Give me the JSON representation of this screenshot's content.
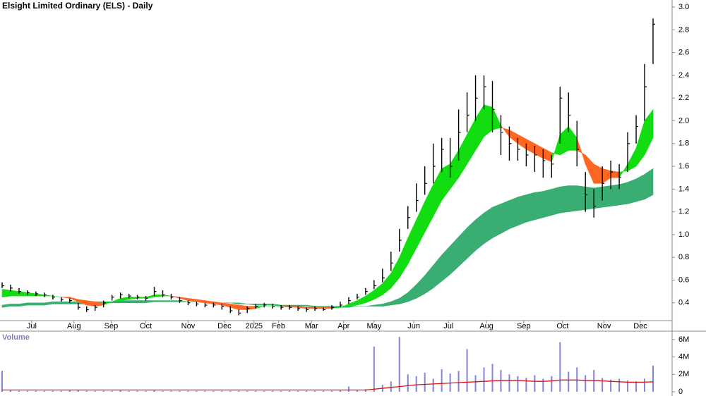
{
  "chart_data": [
    {
      "type": "ohlc",
      "title": "Elsight Limited Ordinary (ELS) - Daily",
      "high": [
        0.58,
        0.56,
        0.53,
        0.51,
        0.5,
        0.49,
        0.47,
        0.45,
        0.44,
        0.4,
        0.37,
        0.38,
        0.42,
        0.47,
        0.49,
        0.48,
        0.47,
        0.46,
        0.54,
        0.51,
        0.48,
        0.45,
        0.42,
        0.41,
        0.4,
        0.4,
        0.39,
        0.37,
        0.34,
        0.37,
        0.39,
        0.4,
        0.39,
        0.38,
        0.38,
        0.37,
        0.36,
        0.37,
        0.36,
        0.38,
        0.41,
        0.45,
        0.48,
        0.53,
        0.6,
        0.7,
        0.85,
        1.05,
        1.25,
        1.45,
        1.6,
        1.8,
        1.85,
        1.85,
        2.1,
        2.25,
        2.4,
        2.4,
        2.35,
        2.05,
        1.95,
        1.85,
        1.8,
        1.78,
        1.75,
        1.7,
        2.3,
        2.25,
        2.0,
        1.55,
        1.4,
        1.6,
        1.65,
        1.62,
        1.9,
        2.05,
        2.5,
        2.9
      ],
      "low": [
        0.53,
        0.5,
        0.48,
        0.47,
        0.46,
        0.45,
        0.43,
        0.41,
        0.4,
        0.34,
        0.32,
        0.33,
        0.36,
        0.42,
        0.44,
        0.44,
        0.43,
        0.42,
        0.46,
        0.45,
        0.43,
        0.4,
        0.38,
        0.37,
        0.36,
        0.36,
        0.34,
        0.31,
        0.29,
        0.31,
        0.35,
        0.36,
        0.35,
        0.34,
        0.34,
        0.33,
        0.32,
        0.33,
        0.33,
        0.34,
        0.36,
        0.39,
        0.43,
        0.47,
        0.52,
        0.58,
        0.68,
        0.85,
        1.05,
        1.2,
        1.35,
        1.45,
        1.55,
        1.5,
        1.65,
        1.9,
        2.0,
        2.1,
        1.9,
        1.7,
        1.65,
        1.65,
        1.6,
        1.55,
        1.5,
        1.5,
        1.8,
        1.9,
        1.6,
        1.2,
        1.15,
        1.3,
        1.4,
        1.4,
        1.55,
        1.8,
        2.0,
        2.5
      ],
      "close": [
        0.55,
        0.53,
        0.5,
        0.49,
        0.48,
        0.47,
        0.45,
        0.43,
        0.42,
        0.36,
        0.34,
        0.36,
        0.4,
        0.45,
        0.47,
        0.46,
        0.45,
        0.44,
        0.5,
        0.47,
        0.45,
        0.42,
        0.4,
        0.39,
        0.38,
        0.38,
        0.37,
        0.33,
        0.31,
        0.35,
        0.37,
        0.38,
        0.37,
        0.36,
        0.36,
        0.35,
        0.34,
        0.35,
        0.34,
        0.36,
        0.38,
        0.42,
        0.45,
        0.5,
        0.55,
        0.62,
        0.75,
        0.95,
        1.15,
        1.3,
        1.45,
        1.6,
        1.75,
        1.6,
        1.9,
        2.05,
        2.2,
        2.3,
        2.1,
        1.9,
        1.8,
        1.75,
        1.7,
        1.7,
        1.65,
        1.62,
        2.2,
        2.05,
        1.75,
        1.35,
        1.25,
        1.45,
        1.55,
        1.5,
        1.8,
        1.95,
        2.3,
        2.85
      ],
      "color": "#000000",
      "short_band": {
        "up_color": "#11dd11",
        "down_color": "#ff6622",
        "fast": [
          0.52,
          0.51,
          0.5,
          0.49,
          0.48,
          0.47,
          0.46,
          0.45,
          0.44,
          0.41,
          0.38,
          0.37,
          0.38,
          0.41,
          0.44,
          0.45,
          0.45,
          0.45,
          0.47,
          0.47,
          0.46,
          0.44,
          0.42,
          0.41,
          0.4,
          0.39,
          0.38,
          0.36,
          0.34,
          0.34,
          0.35,
          0.37,
          0.37,
          0.37,
          0.36,
          0.36,
          0.35,
          0.35,
          0.35,
          0.35,
          0.36,
          0.39,
          0.42,
          0.46,
          0.51,
          0.57,
          0.66,
          0.8,
          0.97,
          1.13,
          1.29,
          1.44,
          1.58,
          1.62,
          1.74,
          1.88,
          2.02,
          2.14,
          2.12,
          1.96,
          1.86,
          1.8,
          1.75,
          1.71,
          1.67,
          1.64,
          1.88,
          1.95,
          1.85,
          1.62,
          1.45,
          1.45,
          1.5,
          1.5,
          1.62,
          1.76,
          2.0,
          2.1
        ],
        "slow": [
          0.45,
          0.46,
          0.46,
          0.46,
          0.46,
          0.46,
          0.46,
          0.45,
          0.45,
          0.43,
          0.42,
          0.41,
          0.4,
          0.41,
          0.42,
          0.43,
          0.44,
          0.44,
          0.45,
          0.46,
          0.46,
          0.45,
          0.44,
          0.43,
          0.42,
          0.41,
          0.4,
          0.39,
          0.38,
          0.37,
          0.37,
          0.37,
          0.37,
          0.37,
          0.37,
          0.37,
          0.36,
          0.36,
          0.36,
          0.36,
          0.36,
          0.37,
          0.38,
          0.4,
          0.43,
          0.47,
          0.53,
          0.62,
          0.74,
          0.88,
          1.02,
          1.16,
          1.3,
          1.4,
          1.5,
          1.62,
          1.74,
          1.86,
          1.92,
          1.94,
          1.92,
          1.88,
          1.84,
          1.8,
          1.76,
          1.72,
          1.7,
          1.74,
          1.74,
          1.7,
          1.62,
          1.58,
          1.56,
          1.55,
          1.56,
          1.6,
          1.7,
          1.85
        ]
      },
      "long_band": {
        "color": "#3aae72",
        "fast": [
          0.38,
          0.39,
          0.39,
          0.4,
          0.4,
          0.4,
          0.41,
          0.41,
          0.41,
          0.41,
          0.41,
          0.41,
          0.41,
          0.41,
          0.42,
          0.42,
          0.42,
          0.42,
          0.42,
          0.42,
          0.42,
          0.42,
          0.41,
          0.41,
          0.41,
          0.4,
          0.4,
          0.4,
          0.39,
          0.39,
          0.38,
          0.38,
          0.38,
          0.37,
          0.37,
          0.37,
          0.37,
          0.36,
          0.36,
          0.36,
          0.36,
          0.36,
          0.37,
          0.37,
          0.38,
          0.39,
          0.41,
          0.44,
          0.49,
          0.56,
          0.64,
          0.73,
          0.82,
          0.9,
          0.98,
          1.06,
          1.13,
          1.19,
          1.24,
          1.27,
          1.3,
          1.33,
          1.35,
          1.37,
          1.38,
          1.4,
          1.42,
          1.43,
          1.43,
          1.42,
          1.41,
          1.42,
          1.43,
          1.44,
          1.46,
          1.49,
          1.53,
          1.58
        ],
        "slow": [
          0.36,
          0.37,
          0.37,
          0.38,
          0.38,
          0.38,
          0.39,
          0.39,
          0.39,
          0.39,
          0.39,
          0.39,
          0.4,
          0.4,
          0.4,
          0.4,
          0.4,
          0.4,
          0.41,
          0.41,
          0.41,
          0.41,
          0.41,
          0.41,
          0.41,
          0.4,
          0.4,
          0.4,
          0.4,
          0.39,
          0.39,
          0.39,
          0.39,
          0.38,
          0.38,
          0.38,
          0.38,
          0.37,
          0.37,
          0.37,
          0.37,
          0.37,
          0.37,
          0.37,
          0.37,
          0.37,
          0.38,
          0.39,
          0.41,
          0.44,
          0.48,
          0.53,
          0.59,
          0.65,
          0.72,
          0.79,
          0.86,
          0.92,
          0.97,
          1.01,
          1.05,
          1.08,
          1.11,
          1.13,
          1.15,
          1.17,
          1.19,
          1.2,
          1.21,
          1.22,
          1.23,
          1.24,
          1.25,
          1.26,
          1.27,
          1.29,
          1.31,
          1.35
        ]
      },
      "ylim": [
        0.25,
        3.05
      ],
      "yticks": [
        0.4,
        0.6,
        0.8,
        {
          "value": 1.0,
          "label": "1.0"
        },
        1.2,
        1.4,
        1.6,
        1.8,
        {
          "value": 2.0,
          "label": "2.0"
        },
        2.2,
        2.4,
        2.6,
        2.8,
        {
          "value": 3.0,
          "label": "3.0"
        }
      ],
      "xlim": [
        0,
        77
      ],
      "xticks": [
        {
          "value": 3.5,
          "label": "Jul"
        },
        {
          "value": 8.5,
          "label": "Aug"
        },
        {
          "value": 12.9,
          "label": "Sep"
        },
        {
          "value": 17.0,
          "label": "Oct"
        },
        {
          "value": 22.0,
          "label": "Nov"
        },
        {
          "value": 26.3,
          "label": "Dec"
        },
        {
          "value": 29.8,
          "label": "2025"
        },
        {
          "value": 32.7,
          "label": "Feb"
        },
        {
          "value": 36.6,
          "label": "Mar"
        },
        {
          "value": 40.4,
          "label": "Apr"
        },
        {
          "value": 44.0,
          "label": "May"
        },
        {
          "value": 48.7,
          "label": "Jun"
        },
        {
          "value": 52.8,
          "label": "Jul"
        },
        {
          "value": 57.3,
          "label": "Aug"
        },
        {
          "value": 61.7,
          "label": "Sep"
        },
        {
          "value": 66.3,
          "label": "Oct"
        },
        {
          "value": 71.2,
          "label": "Nov"
        },
        {
          "value": 75.5,
          "label": "Dec"
        }
      ]
    },
    {
      "type": "bar",
      "title": "Volume",
      "color": "#8585d6",
      "values": [
        2.4,
        0.2,
        0.1,
        0.1,
        0.1,
        0.1,
        0.1,
        0.1,
        0.2,
        0.2,
        0.1,
        0.1,
        0.1,
        0.1,
        0.2,
        0.1,
        0.1,
        0.1,
        0.2,
        0.1,
        0.1,
        0.1,
        0.1,
        0.1,
        0.1,
        0.1,
        0.1,
        0.1,
        0.1,
        0.1,
        0.1,
        0.1,
        0.1,
        0.1,
        0.1,
        0.1,
        0.1,
        0.1,
        0.1,
        0.1,
        0.2,
        0.6,
        0.2,
        0.3,
        5.2,
        0.8,
        1.2,
        6.3,
        2.0,
        1.8,
        2.2,
        1.5,
        2.6,
        2.1,
        2.4,
        4.9,
        1.9,
        2.8,
        3.2,
        2.5,
        2.0,
        1.8,
        1.6,
        1.9,
        1.5,
        1.8,
        5.7,
        2.3,
        2.8,
        1.9,
        2.5,
        1.6,
        1.4,
        1.5,
        1.3,
        1.2,
        1.5,
        3.0
      ],
      "average": {
        "color": "#dd1111",
        "values": [
          0.2,
          0.2,
          0.2,
          0.2,
          0.2,
          0.2,
          0.2,
          0.2,
          0.2,
          0.2,
          0.2,
          0.2,
          0.2,
          0.2,
          0.2,
          0.2,
          0.2,
          0.2,
          0.2,
          0.2,
          0.2,
          0.2,
          0.2,
          0.2,
          0.2,
          0.2,
          0.2,
          0.2,
          0.2,
          0.2,
          0.2,
          0.2,
          0.2,
          0.2,
          0.2,
          0.2,
          0.2,
          0.2,
          0.2,
          0.2,
          0.2,
          0.2,
          0.2,
          0.2,
          0.3,
          0.4,
          0.5,
          0.6,
          0.7,
          0.8,
          0.85,
          0.9,
          0.95,
          1.0,
          1.05,
          1.1,
          1.15,
          1.2,
          1.25,
          1.3,
          1.3,
          1.3,
          1.25,
          1.2,
          1.2,
          1.25,
          1.35,
          1.35,
          1.35,
          1.3,
          1.3,
          1.25,
          1.2,
          1.15,
          1.1,
          1.1,
          1.1,
          1.15
        ]
      },
      "ylim": [
        0,
        6.8
      ],
      "yticks": [
        0,
        {
          "value": 2,
          "label": "2M"
        },
        {
          "value": 4,
          "label": "4M"
        },
        {
          "value": 6,
          "label": "6M"
        }
      ]
    }
  ]
}
